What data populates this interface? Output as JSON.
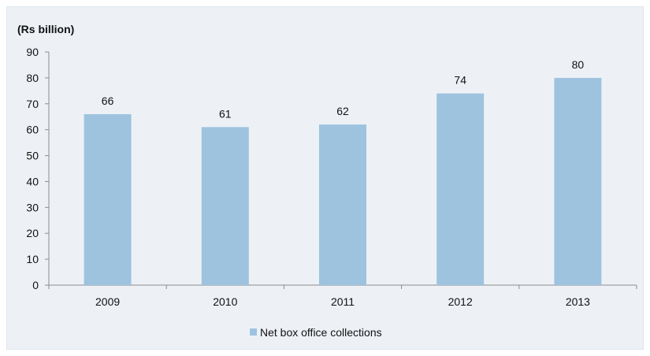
{
  "chart_data": {
    "type": "bar",
    "unit_label": "(Rs billion)",
    "categories": [
      "2009",
      "2010",
      "2011",
      "2012",
      "2013"
    ],
    "series": [
      {
        "name": "Net box office collections",
        "values": [
          66,
          61,
          62,
          74,
          80
        ]
      }
    ],
    "data_labels": [
      "66",
      "61",
      "62",
      "74",
      "80"
    ],
    "ylim": [
      0,
      90
    ],
    "yticks": [
      0,
      10,
      20,
      30,
      40,
      50,
      60,
      70,
      80,
      90
    ],
    "grid": false,
    "legend_position": "bottom",
    "colors": {
      "bar": "#9dc3df",
      "background": "#edf1f6",
      "axis": "#8c8c8c"
    }
  }
}
